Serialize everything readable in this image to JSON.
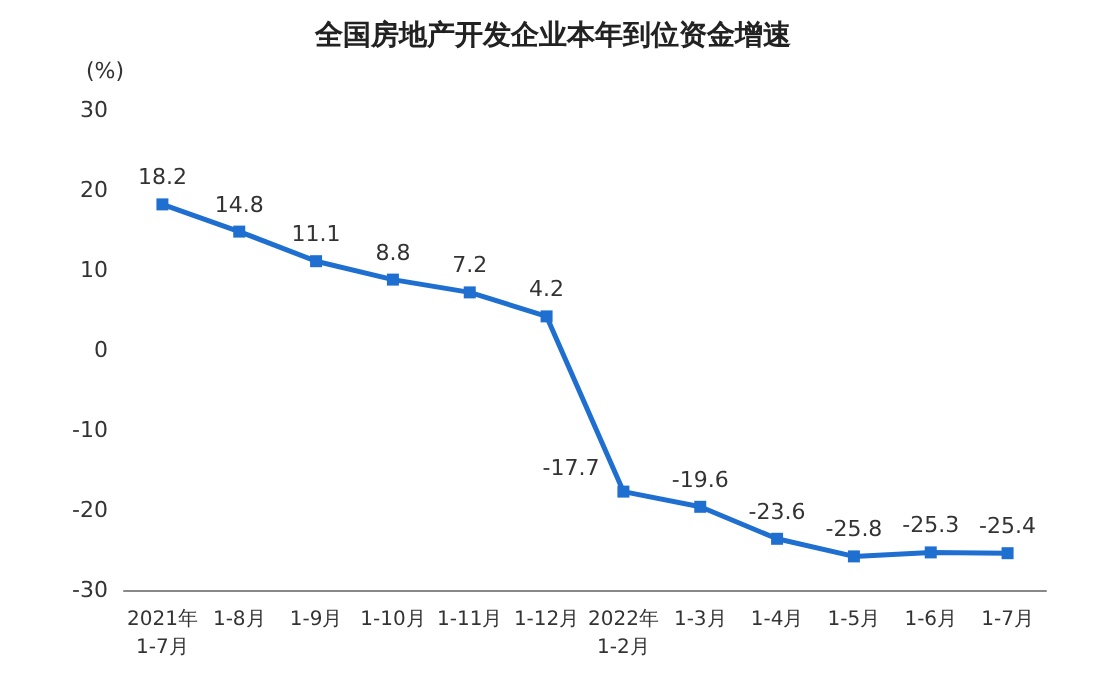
{
  "chart_data": {
    "type": "line",
    "title": "全国房地产开发企业本年到位资金增速",
    "ylabel": "(%)",
    "categories": [
      "2021年\n1-7月",
      "1-8月",
      "1-9月",
      "1-10月",
      "1-11月",
      "1-12月",
      "2022年\n1-2月",
      "1-3月",
      "1-4月",
      "1-5月",
      "1-6月",
      "1-7月"
    ],
    "series": [
      {
        "color": "#1f6fd0",
        "values": [
          18.2,
          14.8,
          11.1,
          8.8,
          7.2,
          4.2,
          -17.7,
          -19.6,
          -23.6,
          -25.8,
          -25.3,
          -25.4
        ]
      }
    ],
    "ylim": [
      -30,
      30
    ],
    "yticks": [
      -30,
      -20,
      -10,
      0,
      10,
      20,
      30
    ],
    "grid": false,
    "marker": "square",
    "line_style": "solid",
    "data_labels": true
  }
}
